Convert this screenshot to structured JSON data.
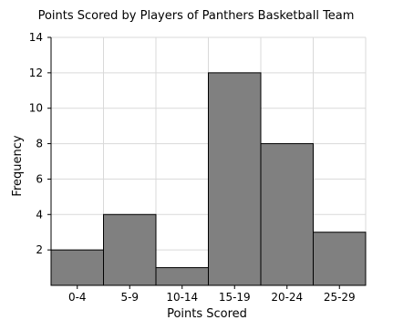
{
  "chart_data": {
    "type": "bar",
    "title": "Points Scored by Players of Panthers Basketball Team",
    "xlabel": "Points Scored",
    "ylabel": "Frequency",
    "categories": [
      "0-4",
      "5-9",
      "10-14",
      "15-19",
      "20-24",
      "25-29"
    ],
    "values": [
      2,
      4,
      1,
      12,
      8,
      3
    ],
    "ylim": [
      0,
      14
    ],
    "yticks": [
      2,
      4,
      6,
      8,
      10,
      12,
      14
    ],
    "grid": true,
    "bar_color": "#808080",
    "bar_edge_color": "#000000",
    "grid_color": "#d9d9d9"
  }
}
